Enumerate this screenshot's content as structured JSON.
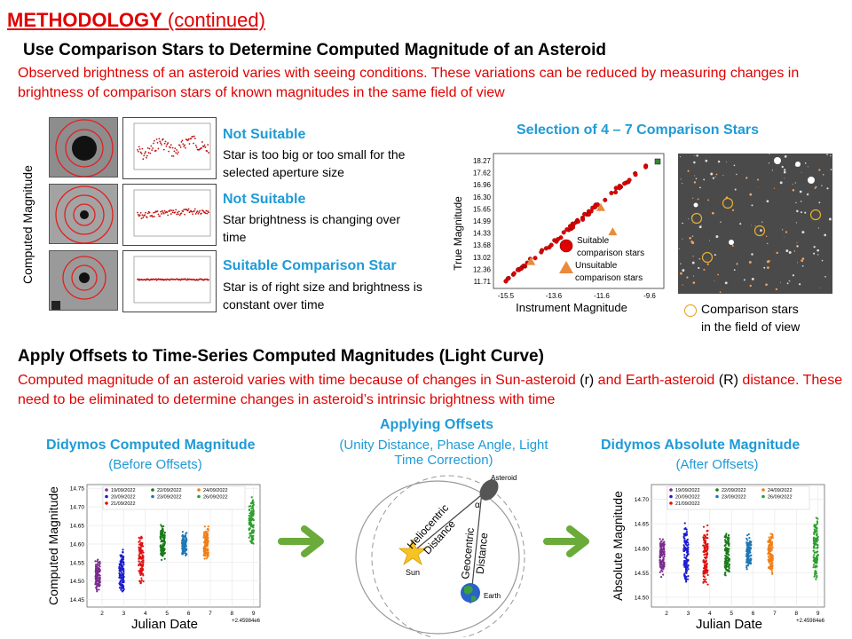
{
  "title": {
    "main": "METHODOLOGY",
    "cont": " (continued)"
  },
  "section1": {
    "heading": "Use Comparison Stars to Determine Computed Magnitude of an Asteroid",
    "text": "Observed brightness of an asteroid varies with seeing conditions. These variations can be reduced by measuring changes in brightness of comparison stars of known magnitudes in the same field of view"
  },
  "left_panel": {
    "ylabel": "Computed Magnitude",
    "items": [
      {
        "title": "Not Suitable",
        "desc": "Star is too big or too small for the selected aperture size"
      },
      {
        "title": "Not Suitable",
        "desc": "Star brightness is changing over time"
      },
      {
        "title": "Suitable Comparison Star",
        "desc": "Star is of right size and brightness is constant over time"
      }
    ]
  },
  "selection": {
    "title": "Selection of 4 – 7 Comparison  Stars",
    "legend_caption": "Comparison stars in the field of view",
    "legend_caption_l1": "Comparison stars",
    "legend_caption_l2": "in the field of view"
  },
  "calib_chart": {
    "ylabel": "True Magnitude",
    "xlabel": "Instrument  Magnitude",
    "yticks": [
      "18.27",
      "17.62",
      "16.96",
      "16.30",
      "15.65",
      "14.99",
      "14.33",
      "13.68",
      "13.02",
      "12.36",
      "11.71"
    ],
    "xticks": [
      "-15.5",
      "-13.6",
      "-11.6",
      "-9.6"
    ],
    "legend": {
      "suitable_l1": "Suitable",
      "suitable_l2": "comparison stars",
      "unsuitable_l1": "Unsuitable",
      "unsuitable_l2": "comparison stars"
    },
    "colors": {
      "suitable": "#e00000",
      "unsuitable": "#e98b3a",
      "target": "#2e8b2e"
    }
  },
  "section2": {
    "heading": "Apply Offsets to Time-Series Computed Magnitudes (Light Curve)",
    "text_a": "Computed magnitude of an asteroid varies with time because of changes in Sun-asteroid ",
    "text_r": "(r)",
    "text_b": " and Earth-asteroid ",
    "text_R": "(R)",
    "text_c": " distance. These need to be eliminated to determine changes in asteroid’s intrinsic brightness with time"
  },
  "before": {
    "title": "Didymos  Computed  Magnitude",
    "sub": "(Before Offsets)"
  },
  "offsets": {
    "title": "Applying  Offsets",
    "sub_l1": "(Unity Distance, Phase Angle, Light",
    "sub_l2": "Time Correction)"
  },
  "after": {
    "title": "Didymos  Absolute  Magnitude",
    "sub": "(After Offsets)"
  },
  "orbit": {
    "asteroid": "Asteroid",
    "sun": "Sun",
    "earth": "Earth",
    "helio_l1": "Heliocentric",
    "helio_l2": "Distance",
    "geo_l1": "Geocentric",
    "geo_l2": "Distance",
    "alpha": "α"
  },
  "chart_data": [
    {
      "type": "scatter",
      "title": "",
      "xlabel": "Julian Date",
      "ylabel": "Computed Magnitude",
      "offset_label": "+2.45984e6",
      "xticks": [
        "2",
        "3",
        "4",
        "5",
        "6",
        "7",
        "8",
        "9"
      ],
      "yticks": [
        "14.75",
        "14.70",
        "14.65",
        "14.60",
        "14.55",
        "14.50",
        "14.45"
      ],
      "ylim": [
        14.43,
        14.76
      ],
      "xlim": [
        1.3,
        9.3
      ],
      "legend_placement": "top",
      "series": [
        {
          "name": "19/09/2022",
          "color": "#7b2c8e",
          "x": 1.8,
          "center": 14.515,
          "spread": 0.045
        },
        {
          "name": "20/09/2022",
          "color": "#1c1cd0",
          "x": 2.9,
          "center": 14.53,
          "spread": 0.07
        },
        {
          "name": "21/09/2022",
          "color": "#e01010",
          "x": 3.8,
          "center": 14.56,
          "spread": 0.07
        },
        {
          "name": "22/09/2022",
          "color": "#1a7a1a",
          "x": 4.8,
          "center": 14.605,
          "spread": 0.05
        },
        {
          "name": "23/09/2022",
          "color": "#1f77b4",
          "x": 5.8,
          "center": 14.6,
          "spread": 0.035
        },
        {
          "name": "24/09/2022",
          "color": "#f07f16",
          "x": 6.8,
          "center": 14.6,
          "spread": 0.05
        },
        {
          "name": "26/09/2022",
          "color": "#2ca02c",
          "x": 8.9,
          "center": 14.66,
          "spread": 0.07
        }
      ]
    },
    {
      "type": "scatter",
      "title": "",
      "xlabel": "Julian Date",
      "ylabel": "Absolute Magnitude",
      "offset_label": "+2.45984e6",
      "xticks": [
        "2",
        "3",
        "4",
        "5",
        "6",
        "7",
        "8",
        "9"
      ],
      "yticks": [
        "14.70",
        "14.65",
        "14.60",
        "14.55",
        "14.50"
      ],
      "ylim": [
        14.48,
        14.73
      ],
      "xlim": [
        1.3,
        9.3
      ],
      "legend_placement": "top",
      "series": [
        {
          "name": "19/09/2022",
          "color": "#7b2c8e",
          "x": 1.8,
          "center": 14.585,
          "spread": 0.045
        },
        {
          "name": "20/09/2022",
          "color": "#1c1cd0",
          "x": 2.9,
          "center": 14.59,
          "spread": 0.07
        },
        {
          "name": "21/09/2022",
          "color": "#e01010",
          "x": 3.8,
          "center": 14.585,
          "spread": 0.07
        },
        {
          "name": "22/09/2022",
          "color": "#1a7a1a",
          "x": 4.8,
          "center": 14.59,
          "spread": 0.05
        },
        {
          "name": "23/09/2022",
          "color": "#1f77b4",
          "x": 5.8,
          "center": 14.59,
          "spread": 0.04
        },
        {
          "name": "24/09/2022",
          "color": "#f07f16",
          "x": 6.8,
          "center": 14.59,
          "spread": 0.05
        },
        {
          "name": "26/09/2022",
          "color": "#2ca02c",
          "x": 8.9,
          "center": 14.6,
          "spread": 0.07
        }
      ]
    }
  ],
  "colors": {
    "accent_red": "#e00000",
    "accent_blue": "#1f9bd6",
    "arrow_green": "#6aab3a"
  }
}
